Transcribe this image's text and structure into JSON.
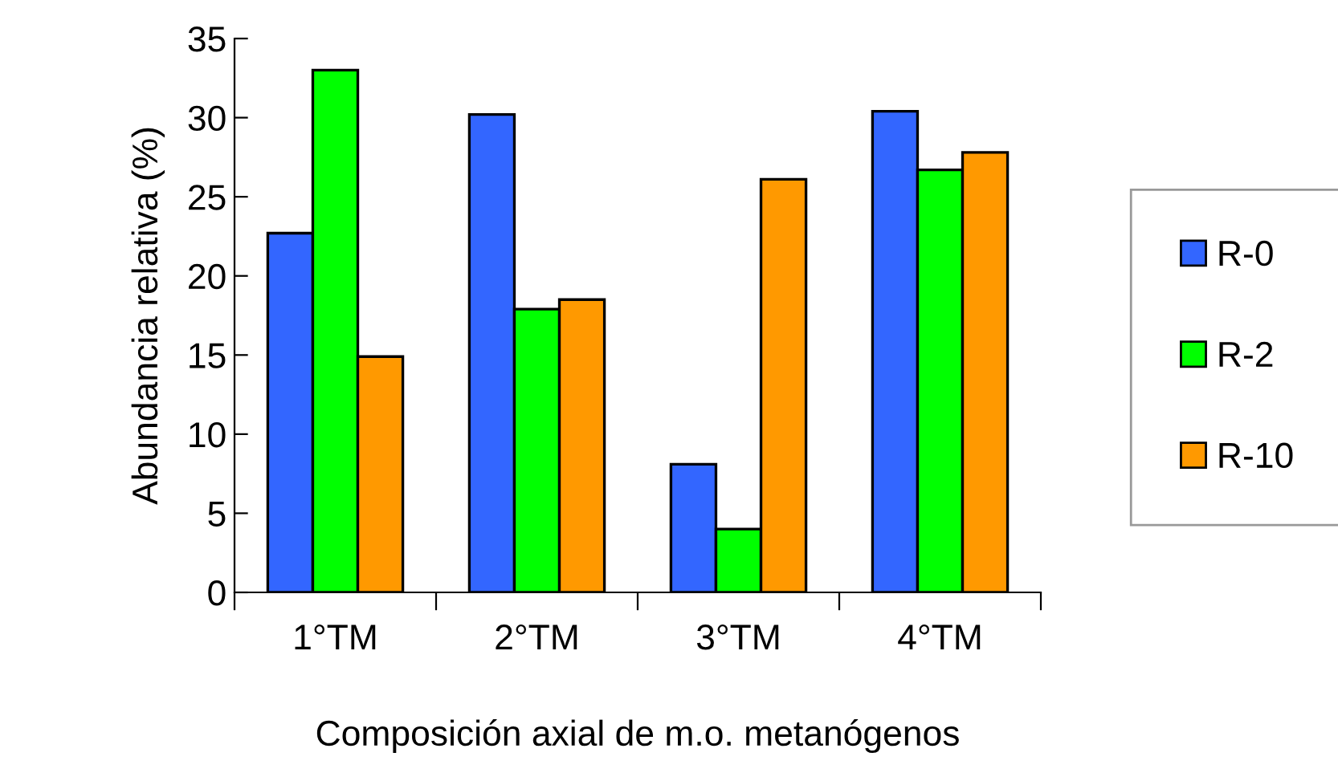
{
  "chart_data": {
    "type": "bar",
    "xlabel": "Composición axial de m.o. metanógenos",
    "ylabel": "Abundancia relativa (%)",
    "categories": [
      "1°TM",
      "2°TM",
      "3°TM",
      "4°TM"
    ],
    "series": [
      {
        "name": "R-0",
        "color": "#3366ff",
        "values": [
          22.7,
          30.2,
          8.1,
          30.4
        ]
      },
      {
        "name": "R-2",
        "color": "#00ff00",
        "values": [
          33.0,
          17.9,
          4.0,
          26.7
        ]
      },
      {
        "name": "R-10",
        "color": "#ff9900",
        "values": [
          14.9,
          18.5,
          26.1,
          27.8
        ]
      }
    ],
    "ylim": [
      0,
      35
    ],
    "yticks": [
      0,
      5,
      10,
      15,
      20,
      25,
      30,
      35
    ],
    "grid": false,
    "legend": "right"
  }
}
